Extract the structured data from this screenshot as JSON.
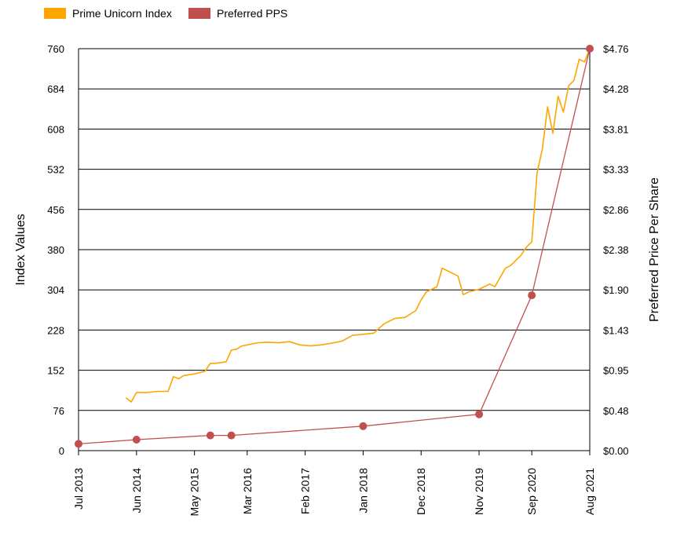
{
  "chart_data": {
    "type": "line",
    "title": "",
    "legend": {
      "placement": "top-left",
      "items": [
        {
          "name": "Prime Unicorn Index",
          "color": "#FFA500"
        },
        {
          "name": "Preferred PPS",
          "color": "#C0504D"
        }
      ]
    },
    "x_axis": {
      "type": "date",
      "range": [
        "2013-07",
        "2021-08"
      ],
      "ticks": [
        {
          "date": "2013-07",
          "label": "Jul 2013"
        },
        {
          "date": "2014-06",
          "label": "Jun 2014"
        },
        {
          "date": "2015-05",
          "label": "May 2015"
        },
        {
          "date": "2016-03",
          "label": "Mar 2016"
        },
        {
          "date": "2017-02",
          "label": "Feb 2017"
        },
        {
          "date": "2018-01",
          "label": "Jan 2018"
        },
        {
          "date": "2018-12",
          "label": "Dec 2018"
        },
        {
          "date": "2019-11",
          "label": "Nov 2019"
        },
        {
          "date": "2020-09",
          "label": "Sep 2020"
        },
        {
          "date": "2021-08",
          "label": "Aug 2021"
        }
      ]
    },
    "y_left": {
      "label": "Index Values",
      "range": [
        0,
        760
      ],
      "ticks": [
        "0",
        "76",
        "152",
        "228",
        "304",
        "380",
        "456",
        "532",
        "608",
        "684",
        "760"
      ],
      "grid": true
    },
    "y_right": {
      "label": "Preferred Price Per Share",
      "range": [
        0,
        4.76
      ],
      "ticks": [
        "$0.00",
        "$0.48",
        "$0.95",
        "$1.43",
        "$1.90",
        "$2.38",
        "$2.86",
        "$3.33",
        "$3.81",
        "$4.28",
        "$4.76"
      ]
    },
    "series": [
      {
        "name": "Prime Unicorn Index",
        "axis": "left",
        "color": "#FFA500",
        "points": [
          [
            "2014-04",
            100
          ],
          [
            "2014-05",
            92
          ],
          [
            "2014-06",
            110
          ],
          [
            "2014-08",
            110
          ],
          [
            "2014-10",
            112
          ],
          [
            "2014-12",
            112
          ],
          [
            "2015-01",
            140
          ],
          [
            "2015-02",
            136
          ],
          [
            "2015-03",
            142
          ],
          [
            "2015-05",
            145
          ],
          [
            "2015-07",
            150
          ],
          [
            "2015-08",
            165
          ],
          [
            "2015-09",
            165
          ],
          [
            "2015-11",
            168
          ],
          [
            "2015-12",
            190
          ],
          [
            "2016-01",
            192
          ],
          [
            "2016-02",
            198
          ],
          [
            "2016-03",
            200
          ],
          [
            "2016-05",
            204
          ],
          [
            "2016-07",
            205
          ],
          [
            "2016-09",
            204
          ],
          [
            "2016-11",
            206
          ],
          [
            "2017-01",
            200
          ],
          [
            "2017-03",
            198
          ],
          [
            "2017-05",
            200
          ],
          [
            "2017-07",
            203
          ],
          [
            "2017-09",
            207
          ],
          [
            "2017-11",
            218
          ],
          [
            "2018-01",
            220
          ],
          [
            "2018-03",
            222
          ],
          [
            "2018-05",
            240
          ],
          [
            "2018-07",
            250
          ],
          [
            "2018-09",
            252
          ],
          [
            "2018-11",
            265
          ],
          [
            "2018-12",
            285
          ],
          [
            "2019-01",
            300
          ],
          [
            "2019-03",
            310
          ],
          [
            "2019-04",
            345
          ],
          [
            "2019-05",
            340
          ],
          [
            "2019-07",
            330
          ],
          [
            "2019-08",
            295
          ],
          [
            "2019-09",
            300
          ],
          [
            "2019-11",
            305
          ],
          [
            "2020-01",
            315
          ],
          [
            "2020-02",
            310
          ],
          [
            "2020-04",
            345
          ],
          [
            "2020-05",
            350
          ],
          [
            "2020-06",
            360
          ],
          [
            "2020-07",
            370
          ],
          [
            "2020-08",
            385
          ],
          [
            "2020-09",
            395
          ],
          [
            "2020-10",
            525
          ],
          [
            "2020-11",
            570
          ],
          [
            "2020-12",
            650
          ],
          [
            "2021-01",
            600
          ],
          [
            "2021-02",
            670
          ],
          [
            "2021-03",
            640
          ],
          [
            "2021-04",
            690
          ],
          [
            "2021-05",
            700
          ],
          [
            "2021-06",
            740
          ],
          [
            "2021-07",
            735
          ],
          [
            "2021-08",
            760
          ]
        ]
      },
      {
        "name": "Preferred PPS",
        "axis": "right",
        "color": "#C0504D",
        "points": [
          [
            "2013-07",
            0.08
          ],
          [
            "2014-06",
            0.13
          ],
          [
            "2015-08",
            0.18
          ],
          [
            "2015-12",
            0.18
          ],
          [
            "2018-01",
            0.29
          ],
          [
            "2019-11",
            0.43
          ],
          [
            "2020-09",
            1.84
          ],
          [
            "2021-08",
            4.76
          ]
        ]
      }
    ]
  }
}
